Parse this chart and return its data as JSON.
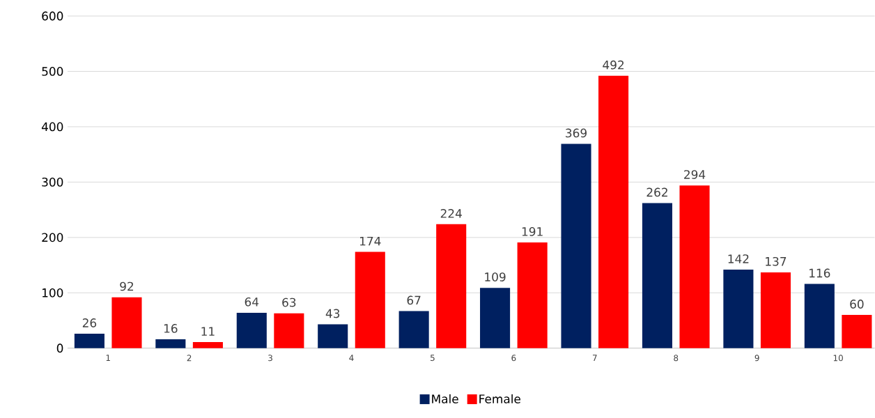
{
  "chart_data": {
    "type": "bar",
    "categories": [
      "1",
      "2",
      "3",
      "4",
      "5",
      "6",
      "7",
      "8",
      "9",
      "10"
    ],
    "series": [
      {
        "name": "Male",
        "color": "#002060",
        "values": [
          26,
          16,
          64,
          43,
          67,
          109,
          369,
          262,
          142,
          116
        ]
      },
      {
        "name": "Female",
        "color": "#ff0000",
        "values": [
          92,
          11,
          63,
          174,
          224,
          191,
          492,
          294,
          137,
          60
        ]
      }
    ],
    "ylim": [
      0,
      600
    ],
    "yticks": [
      0,
      100,
      200,
      300,
      400,
      500,
      600
    ],
    "grid": "y",
    "legend": "bottom",
    "data_labels": true
  }
}
